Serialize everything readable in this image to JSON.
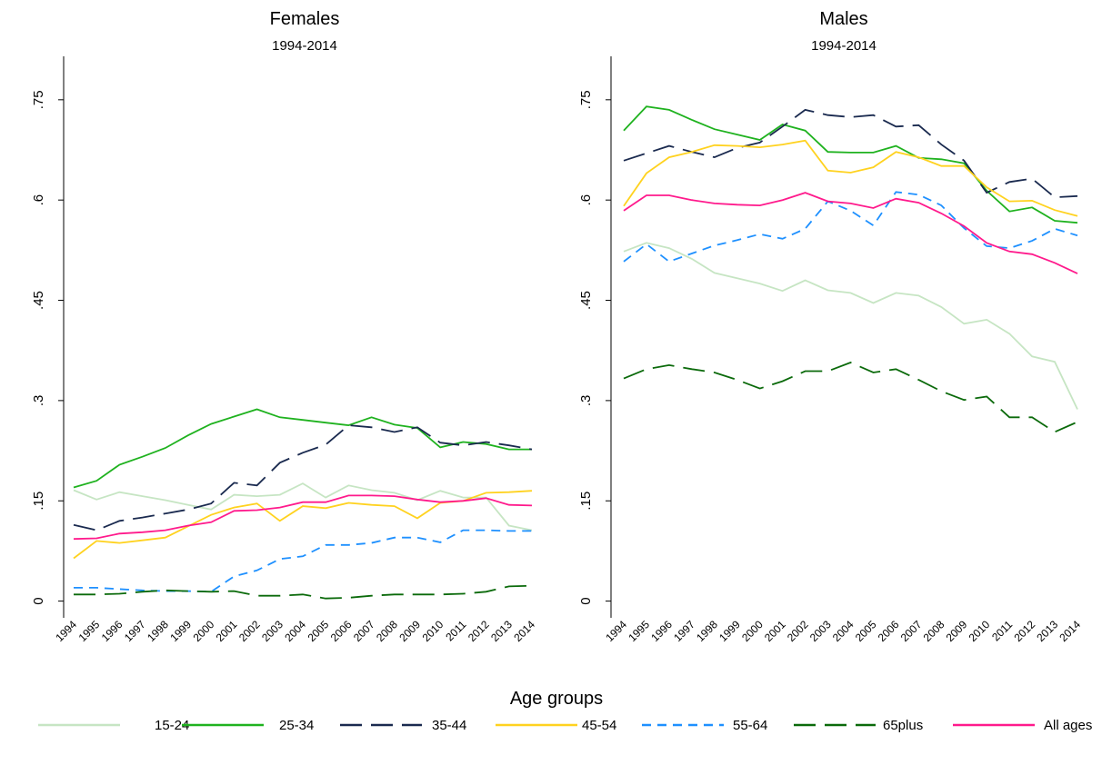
{
  "chart_data": [
    {
      "type": "line",
      "title": "Females",
      "subtitle": "1994-2014",
      "categories": [
        "1994",
        "1995",
        "1996",
        "1997",
        "1998",
        "1999",
        "2000",
        "2001",
        "2002",
        "2003",
        "2004",
        "2005",
        "2006",
        "2007",
        "2008",
        "2009",
        "2010",
        "2011",
        "2012",
        "2013",
        "2014"
      ],
      "ylim": [
        -0.025,
        0.815
      ],
      "yticks": [
        0,
        {
          "value": 0.15,
          "label": ".15"
        },
        {
          "value": 0.3,
          "label": ".3"
        },
        {
          "value": 0.45,
          "label": ".45"
        },
        {
          "value": 0.6,
          "label": ".6"
        },
        {
          "value": 0.75,
          "label": ".75"
        }
      ],
      "series": [
        {
          "name": "15-24",
          "color": "#c6e5c3",
          "dash": "solid",
          "values": [
            0.166,
            0.152,
            0.163,
            0.157,
            0.151,
            0.144,
            0.137,
            0.159,
            0.157,
            0.159,
            0.176,
            0.155,
            0.173,
            0.166,
            0.162,
            0.151,
            0.165,
            0.155,
            0.155,
            0.113,
            0.106
          ]
        },
        {
          "name": "25-34",
          "color": "#1fb21f",
          "dash": "solid",
          "values": [
            0.17,
            0.18,
            0.204,
            0.216,
            0.229,
            0.248,
            0.265,
            0.276,
            0.287,
            0.275,
            0.271,
            0.267,
            0.263,
            0.275,
            0.264,
            0.259,
            0.23,
            0.238,
            0.235,
            0.227,
            0.227
          ]
        },
        {
          "name": "35-44",
          "color": "#1a2a4f",
          "dash": "longdash",
          "values": [
            0.114,
            0.106,
            0.12,
            0.125,
            0.131,
            0.137,
            0.146,
            0.177,
            0.173,
            0.207,
            0.222,
            0.234,
            0.263,
            0.26,
            0.253,
            0.26,
            0.237,
            0.233,
            0.238,
            0.233,
            0.227
          ]
        },
        {
          "name": "45-54",
          "color": "#ffd21f",
          "dash": "solid",
          "values": [
            0.064,
            0.09,
            0.087,
            0.091,
            0.095,
            0.112,
            0.129,
            0.14,
            0.146,
            0.12,
            0.142,
            0.139,
            0.147,
            0.144,
            0.142,
            0.124,
            0.147,
            0.15,
            0.162,
            0.163,
            0.165
          ]
        },
        {
          "name": "55-64",
          "color": "#1e90ff",
          "dash": "dashed",
          "values": [
            0.02,
            0.02,
            0.018,
            0.016,
            0.015,
            0.015,
            0.014,
            0.037,
            0.046,
            0.063,
            0.067,
            0.084,
            0.084,
            0.087,
            0.095,
            0.095,
            0.088,
            0.106,
            0.106,
            0.105,
            0.105
          ]
        },
        {
          "name": "65plus",
          "color": "#0b6a0b",
          "dash": "longdash",
          "values": [
            0.01,
            0.01,
            0.011,
            0.014,
            0.016,
            0.015,
            0.014,
            0.015,
            0.008,
            0.008,
            0.01,
            0.004,
            0.005,
            0.008,
            0.01,
            0.01,
            0.01,
            0.011,
            0.014,
            0.022,
            0.023
          ]
        },
        {
          "name": "All ages",
          "color": "#ff1a8c",
          "dash": "solid",
          "values": [
            0.093,
            0.094,
            0.101,
            0.103,
            0.106,
            0.113,
            0.118,
            0.135,
            0.136,
            0.14,
            0.148,
            0.148,
            0.158,
            0.158,
            0.157,
            0.152,
            0.148,
            0.15,
            0.154,
            0.144,
            0.143
          ]
        }
      ]
    },
    {
      "type": "line",
      "title": "Males",
      "subtitle": "1994-2014",
      "categories": [
        "1994",
        "1995",
        "1996",
        "1997",
        "1998",
        "1999",
        "2000",
        "2001",
        "2002",
        "2003",
        "2004",
        "2005",
        "2006",
        "2007",
        "2008",
        "2009",
        "2010",
        "2011",
        "2012",
        "2013",
        "2014"
      ],
      "ylim": [
        -0.025,
        0.815
      ],
      "yticks": [
        0,
        {
          "value": 0.15,
          "label": ".15"
        },
        {
          "value": 0.3,
          "label": ".3"
        },
        {
          "value": 0.45,
          "label": ".45"
        },
        {
          "value": 0.6,
          "label": ".6"
        },
        {
          "value": 0.75,
          "label": ".75"
        }
      ],
      "series": [
        {
          "name": "15-24",
          "color": "#c6e5c3",
          "dash": "solid",
          "values": [
            0.523,
            0.536,
            0.528,
            0.512,
            0.491,
            0.483,
            0.475,
            0.464,
            0.48,
            0.465,
            0.461,
            0.446,
            0.461,
            0.457,
            0.44,
            0.415,
            0.421,
            0.4,
            0.366,
            0.358,
            0.287
          ]
        },
        {
          "name": "25-34",
          "color": "#1fb21f",
          "dash": "solid",
          "values": [
            0.704,
            0.74,
            0.735,
            0.72,
            0.706,
            0.698,
            0.69,
            0.713,
            0.704,
            0.672,
            0.671,
            0.671,
            0.681,
            0.663,
            0.661,
            0.655,
            0.614,
            0.583,
            0.589,
            0.569,
            0.566
          ]
        },
        {
          "name": "35-44",
          "color": "#1a2a4f",
          "dash": "longdash",
          "values": [
            0.659,
            0.67,
            0.681,
            0.672,
            0.664,
            0.678,
            0.686,
            0.71,
            0.735,
            0.727,
            0.724,
            0.727,
            0.71,
            0.712,
            0.683,
            0.659,
            0.611,
            0.627,
            0.632,
            0.604,
            0.606
          ]
        },
        {
          "name": "45-54",
          "color": "#ffd21f",
          "dash": "solid",
          "values": [
            0.591,
            0.64,
            0.664,
            0.672,
            0.682,
            0.681,
            0.679,
            0.683,
            0.689,
            0.644,
            0.641,
            0.649,
            0.672,
            0.664,
            0.651,
            0.651,
            0.619,
            0.598,
            0.599,
            0.585,
            0.576
          ]
        },
        {
          "name": "55-64",
          "color": "#1e90ff",
          "dash": "dashed",
          "values": [
            0.508,
            0.534,
            0.508,
            0.52,
            0.532,
            0.54,
            0.549,
            0.542,
            0.557,
            0.598,
            0.584,
            0.562,
            0.612,
            0.608,
            0.592,
            0.558,
            0.531,
            0.528,
            0.539,
            0.557,
            0.547
          ]
        },
        {
          "name": "65plus",
          "color": "#0b6a0b",
          "dash": "longdash",
          "values": [
            0.333,
            0.347,
            0.353,
            0.347,
            0.342,
            0.331,
            0.318,
            0.329,
            0.344,
            0.344,
            0.357,
            0.342,
            0.347,
            0.331,
            0.314,
            0.301,
            0.306,
            0.275,
            0.275,
            0.253,
            0.268
          ]
        },
        {
          "name": "All ages",
          "color": "#ff1a8c",
          "dash": "solid",
          "values": [
            0.584,
            0.607,
            0.607,
            0.6,
            0.595,
            0.593,
            0.592,
            0.6,
            0.611,
            0.598,
            0.595,
            0.588,
            0.602,
            0.596,
            0.58,
            0.561,
            0.536,
            0.523,
            0.519,
            0.506,
            0.49
          ]
        }
      ]
    }
  ],
  "legend_title": "Age groups"
}
